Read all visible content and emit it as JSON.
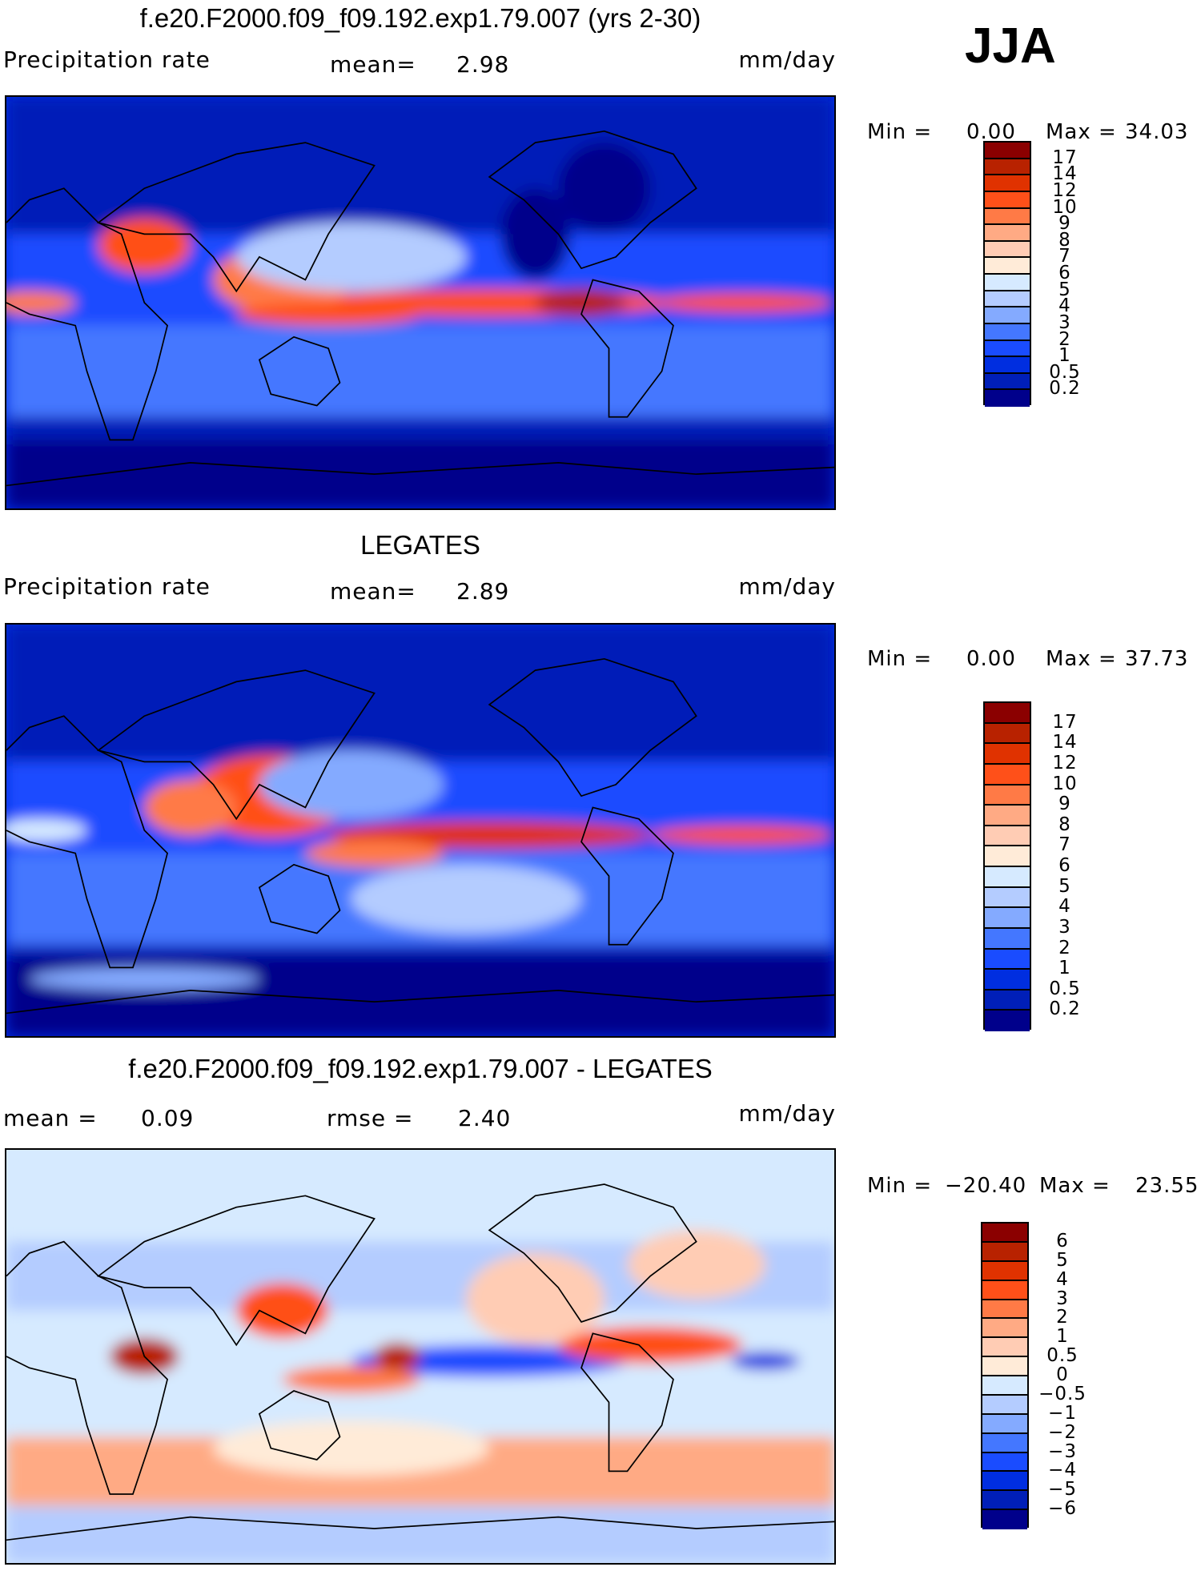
{
  "season": "JJA",
  "colors": [
    "#8B0000",
    "#B82200",
    "#E03200",
    "#FF5019",
    "#FF7A46",
    "#FFAA84",
    "#FFCCB4",
    "#FFEBD8",
    "#D6EAFF",
    "#B4CCFF",
    "#84AAFF",
    "#4477FF",
    "#1A4CFF",
    "#002EE0",
    "#001FB8",
    "#00008B"
  ],
  "chart_data": [
    {
      "type": "heatmap",
      "title": "f.e20.F2000.f09_f09.192.exp1.79.007 (yrs 2-30)",
      "variable": "Precipitation rate",
      "mean_label": "mean=",
      "mean": "2.98",
      "units": "mm/day",
      "min_label": "Min =",
      "min": "0.00",
      "max_label": "Max =",
      "max": "34.03",
      "levels": [
        "17",
        "14",
        "12",
        "10",
        "9",
        "8",
        "7",
        "6",
        "5",
        "4",
        "3",
        "2",
        "1",
        "0.5",
        "0.2"
      ]
    },
    {
      "type": "heatmap",
      "title": "LEGATES",
      "variable": "Precipitation rate",
      "mean_label": "mean=",
      "mean": "2.89",
      "units": "mm/day",
      "min_label": "Min =",
      "min": "0.00",
      "max_label": "Max =",
      "max": "37.73",
      "levels": [
        "17",
        "14",
        "12",
        "10",
        "9",
        "8",
        "7",
        "6",
        "5",
        "4",
        "3",
        "2",
        "1",
        "0.5",
        "0.2"
      ]
    },
    {
      "type": "heatmap",
      "title": "f.e20.F2000.f09_f09.192.exp1.79.007 - LEGATES",
      "mean_label": "mean =",
      "mean": "0.09",
      "rmse_label": "rmse =",
      "rmse": "2.40",
      "units": "mm/day",
      "min_label": "Min =",
      "min": "−20.40",
      "max_label": "Max =",
      "max": "23.55",
      "levels": [
        "6",
        "5",
        "4",
        "3",
        "2",
        "1",
        "0.5",
        "0",
        "−0.5",
        "−1",
        "−2",
        "−3",
        "−4",
        "−5",
        "−6"
      ]
    }
  ]
}
